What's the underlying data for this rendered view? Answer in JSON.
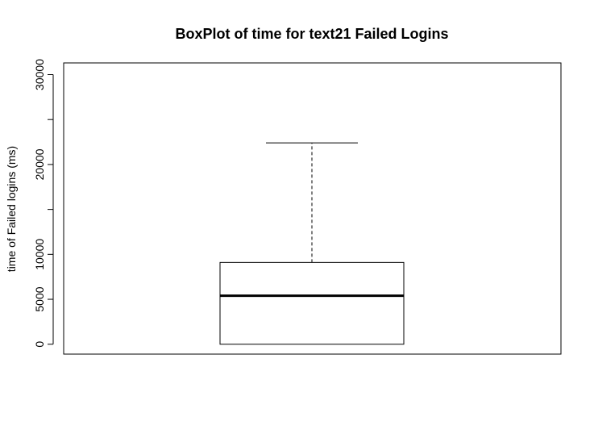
{
  "chart_data": {
    "type": "box",
    "title": "BoxPlot of time for text21 Failed Logins",
    "xlabel": "",
    "ylabel": "time of Failed logins (ms)",
    "ylim": [
      -1100,
      31300
    ],
    "y_ticks": [
      0,
      5000,
      10000,
      15000,
      20000,
      25000,
      30000
    ],
    "y_tick_labels": [
      "0",
      "5000",
      "10000",
      "",
      "20000",
      "",
      "30000"
    ],
    "grid": false,
    "legend": "none",
    "box": {
      "min": 0,
      "q1": 0,
      "median": 5400,
      "q3": 9100,
      "max": 22400
    }
  }
}
